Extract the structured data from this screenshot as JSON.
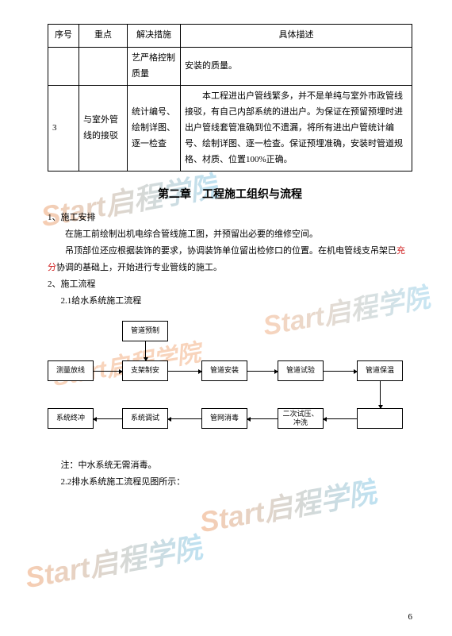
{
  "watermark": "Start启程学院",
  "table": {
    "headers": [
      "序号",
      "重点",
      "解决措施",
      "具体描述"
    ],
    "rows": [
      {
        "seq": "",
        "key": "",
        "measure": "艺严格控制质量",
        "desc": "安装的质量。"
      },
      {
        "seq": "3",
        "key": "与室外管线的接驳",
        "measure": "统计编号、绘制详图、逐一检查",
        "desc": "　　本工程进出户管线繁多，并不是单纯与室外市政管线接驳，有自己内部系统的进出户。为保证在预留预埋时进出户管线套管准确到位不遗漏，将所有进出户管统计编号、绘制详图、逐一检查。保证预埋准确，安装时管道规格、材质、位置100%正确。"
      }
    ]
  },
  "chapter_title": "第二章　工程施工组织与流程",
  "sec1_heading": "1、施工安排",
  "sec1_p1": "在施工前绘制出机电综合管线施工图，并预留出必要的维修空间。",
  "sec1_p2_a": "吊顶部位还应根据装饰的要求，协调装饰单位留出检修口的位置。在机电管线支吊架已",
  "sec1_p2_red": "充分",
  "sec1_p2_b": "协调的基础上，开始进行专业管线的施工。",
  "sec2_heading": "2、施工流程",
  "sec2_sub1": "2.1给水系统施工流程",
  "flow": {
    "boxes": {
      "prep": "管道预制",
      "survey": "测量放线",
      "bracket": "支架制安",
      "install": "管道安装",
      "test": "管道试验",
      "insulate": "管道保温",
      "final": "系统终冲",
      "debug": "系统调试",
      "disinfect": "管网消毒",
      "trial2": "二次试压、冲洗",
      "blank": "　　　　"
    },
    "box_size": {
      "w": 58,
      "h": 26
    },
    "row_y": {
      "r0": 6,
      "r1": 56,
      "r2": 116
    },
    "col_x": {
      "c0": 0,
      "c1": 94,
      "c2": 194,
      "c3": 290,
      "c4": 390
    },
    "arrow_gap": 6
  },
  "note": "注：中水系统无需消毒。",
  "sec2_sub2": "2.2排水系统施工流程见图所示：",
  "page_number": "6"
}
